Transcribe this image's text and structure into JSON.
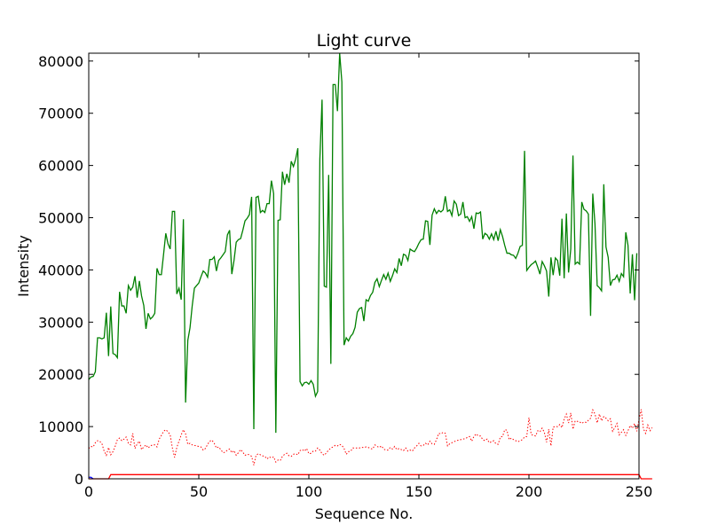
{
  "chart_data": {
    "type": "line",
    "title": "Light curve",
    "xlabel": "Sequence No.",
    "ylabel": "Intensity",
    "xlim": [
      0,
      250
    ],
    "ylim": [
      0,
      81500
    ],
    "xticks": [
      0,
      50,
      100,
      150,
      200,
      250
    ],
    "yticks": [
      0,
      10000,
      20000,
      30000,
      40000,
      50000,
      60000,
      70000,
      80000
    ],
    "grid": false,
    "series": [
      {
        "color": "#008000",
        "style": "solid",
        "values": [
          19000,
          19500,
          19600,
          20500,
          27000,
          27000,
          26800,
          27000,
          31800,
          23500,
          33000,
          24000,
          23800,
          23200,
          35800,
          33100,
          33100,
          31700,
          37000,
          36100,
          36700,
          38800,
          34700,
          37900,
          35000,
          33200,
          28700,
          31700,
          30600,
          31000,
          31700,
          40300,
          39100,
          39100,
          43000,
          47000,
          45000,
          44000,
          51200,
          51200,
          35400,
          36500,
          34300,
          49700,
          14600,
          26500,
          28900,
          33100,
          36500,
          37000,
          37500,
          38700,
          39800,
          39400,
          38600,
          42000,
          42000,
          42500,
          39800,
          41800,
          42300,
          42900,
          43500,
          46700,
          47600,
          39200,
          41800,
          45300,
          45800,
          46000,
          47600,
          49400,
          49900,
          50600,
          54000,
          9500,
          53900,
          54100,
          51000,
          51400,
          51000,
          52700,
          52700,
          57100,
          54600,
          8800,
          49500,
          49600,
          58800,
          56300,
          58400,
          56700,
          60800,
          59800,
          61200,
          63300,
          18600,
          17800,
          18400,
          18500,
          18100,
          18800,
          18100,
          15800,
          16700,
          61200,
          72600,
          36900,
          36700,
          58200,
          22000,
          75500,
          75500,
          70400,
          81500,
          76000,
          25600,
          27000,
          26400,
          27300,
          27800,
          29000,
          31900,
          32600,
          32800,
          30200,
          34300,
          34000,
          35100,
          35700,
          37600,
          38300,
          36800,
          38000,
          39100,
          38200,
          39400,
          37800,
          38900,
          40200,
          39500,
          42200,
          40800,
          43000,
          42800,
          41800,
          44000,
          43700,
          43500,
          44200,
          45100,
          45800,
          45900,
          49400,
          49300,
          44800,
          50500,
          51700,
          50800,
          51400,
          51100,
          51500,
          54100,
          51200,
          51500,
          50400,
          53200,
          52600,
          50400,
          50700,
          53000,
          50000,
          50200,
          49300,
          50200,
          47900,
          50900,
          50800,
          51100,
          45900,
          47000,
          46700,
          45900,
          46900,
          45800,
          47400,
          45600,
          47700,
          46400,
          44700,
          43200,
          43200,
          42900,
          42800,
          42200,
          43200,
          44500,
          44700,
          62800,
          39900,
          40500,
          41000,
          41300,
          41700,
          40500,
          39200,
          41600,
          40800,
          39800,
          34900,
          42400,
          39000,
          42300,
          41800,
          38900,
          49800,
          38400,
          50800,
          39500,
          44000,
          61900,
          41100,
          41500,
          41100,
          53000,
          51600,
          51300,
          50700,
          31200,
          54600,
          48800,
          37000,
          36600,
          36000,
          56400,
          44400,
          42400,
          37000,
          38100,
          38200,
          39000,
          37800,
          39300,
          38700,
          47200,
          44700,
          35500,
          43000,
          34200,
          43200
        ]
      },
      {
        "color": "#ff0000",
        "style": "dotted",
        "values": [
          5800,
          6200,
          6100,
          6900,
          7300,
          7200,
          6700,
          5300,
          4500,
          6000,
          4600,
          5200,
          6200,
          7500,
          7800,
          7300,
          7600,
          8000,
          6800,
          6500,
          8700,
          5800,
          6700,
          7200,
          5600,
          6100,
          6500,
          5900,
          6300,
          6500,
          6500,
          6100,
          7600,
          8300,
          9100,
          9400,
          9000,
          8400,
          5900,
          4100,
          6000,
          7200,
          8400,
          9400,
          8600,
          6600,
          6800,
          6500,
          6400,
          6300,
          6200,
          6100,
          5500,
          5800,
          6600,
          7200,
          7400,
          6800,
          5900,
          6100,
          5600,
          5000,
          5100,
          5500,
          5700,
          5000,
          5400,
          4500,
          5000,
          5600,
          5100,
          4500,
          4700,
          4600,
          4300,
          2600,
          4500,
          4800,
          4600,
          4400,
          4300,
          3800,
          4200,
          4000,
          4200,
          3200,
          3600,
          3500,
          4300,
          4700,
          4900,
          4400,
          4300,
          4700,
          4800,
          4600,
          5400,
          5600,
          5300,
          5800,
          4800,
          4900,
          5300,
          5300,
          5900,
          5500,
          4800,
          4500,
          5000,
          5500,
          5900,
          6100,
          6400,
          6300,
          6600,
          6400,
          5800,
          4700,
          5200,
          5300,
          5900,
          5900,
          5900,
          5900,
          6000,
          6000,
          6100,
          6000,
          5800,
          5700,
          6500,
          6200,
          6000,
          6300,
          5700,
          5500,
          5500,
          6000,
          5700,
          6200,
          5600,
          5800,
          5600,
          5400,
          5900,
          5300,
          5500,
          5300,
          5900,
          6300,
          6800,
          6300,
          6400,
          6800,
          6500,
          7200,
          6700,
          6600,
          7500,
          8700,
          8600,
          8900,
          8700,
          6300,
          6700,
          6900,
          7100,
          7300,
          7400,
          7500,
          7600,
          7700,
          7900,
          8100,
          7200,
          8100,
          8600,
          8200,
          8200,
          7500,
          7300,
          7600,
          6900,
          7100,
          7300,
          6700,
          6600,
          8000,
          8100,
          9400,
          9300,
          7500,
          7800,
          7500,
          7300,
          7100,
          7300,
          7500,
          8000,
          8100,
          11700,
          8500,
          8300,
          8200,
          9200,
          9000,
          9700,
          8900,
          7000,
          9500,
          6300,
          9900,
          10000,
          10000,
          10400,
          9800,
          11400,
          12400,
          10700,
          12600,
          9500,
          11100,
          11000,
          10900,
          10600,
          10900,
          10800,
          11200,
          11600,
          13200,
          12400,
          10700,
          12400,
          11100,
          11900,
          11600,
          11100,
          11500,
          9100,
          9800,
          10600,
          8400,
          8900,
          9400,
          8300,
          9200,
          10200,
          9700,
          10600,
          9100,
          11300,
          13300,
          9600,
          8700,
          10300,
          9200,
          9800
        ]
      },
      {
        "color": "#ff0000",
        "style": "solid",
        "values": [
          0,
          0,
          0,
          0,
          0,
          0,
          0,
          0,
          0,
          0,
          800,
          800,
          800,
          800,
          800,
          800,
          800,
          800,
          800,
          800,
          800,
          800,
          800,
          800,
          800,
          800,
          800,
          800,
          800,
          800,
          800,
          800,
          800,
          800,
          800,
          800,
          800,
          800,
          800,
          800,
          800,
          800,
          800,
          800,
          800,
          800,
          800,
          800,
          800,
          800,
          800,
          800,
          800,
          800,
          800,
          800,
          800,
          800,
          800,
          800,
          800,
          800,
          800,
          800,
          800,
          800,
          800,
          800,
          800,
          800,
          800,
          800,
          800,
          800,
          800,
          800,
          800,
          800,
          800,
          800,
          800,
          800,
          800,
          800,
          800,
          800,
          800,
          800,
          800,
          800,
          800,
          800,
          800,
          800,
          800,
          800,
          800,
          800,
          800,
          800,
          800,
          800,
          800,
          800,
          800,
          800,
          800,
          800,
          800,
          800,
          800,
          800,
          800,
          800,
          800,
          800,
          800,
          800,
          800,
          800,
          800,
          800,
          800,
          800,
          800,
          800,
          800,
          800,
          800,
          800,
          800,
          800,
          800,
          800,
          800,
          800,
          800,
          800,
          800,
          800,
          800,
          800,
          800,
          800,
          800,
          800,
          800,
          800,
          800,
          800,
          800,
          800,
          800,
          800,
          800,
          800,
          800,
          800,
          800,
          800,
          800,
          800,
          800,
          800,
          800,
          800,
          800,
          800,
          800,
          800,
          800,
          800,
          800,
          800,
          800,
          800,
          800,
          800,
          800,
          800,
          800,
          800,
          800,
          800,
          800,
          800,
          800,
          800,
          800,
          800,
          800,
          800,
          800,
          800,
          800,
          800,
          800,
          800,
          800,
          800,
          800,
          800,
          800,
          800,
          800,
          800,
          800,
          800,
          800,
          800,
          800,
          800,
          800,
          800,
          800,
          800,
          800,
          800,
          800,
          800,
          800,
          800,
          800,
          800,
          800,
          800,
          800,
          800,
          800,
          800,
          800,
          800,
          800,
          800,
          800,
          800,
          800,
          800,
          800,
          800,
          800,
          800,
          800,
          800,
          800,
          800,
          800,
          800,
          800,
          800,
          800,
          0,
          0,
          0,
          0,
          0,
          0
        ]
      },
      {
        "color": "#0000ff",
        "style": "solid",
        "values": [
          300,
          300,
          0
        ]
      }
    ]
  }
}
